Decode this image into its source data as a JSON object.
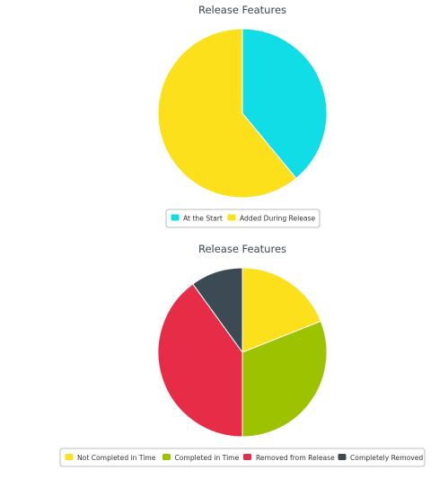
{
  "chart_data": [
    {
      "type": "pie",
      "title": "Release Features",
      "series": [
        {
          "name": "At the Start",
          "value": 39,
          "color": "#10dde6"
        },
        {
          "name": "Added During Release",
          "value": 61,
          "color": "#fde01c"
        }
      ],
      "legend_position": "bottom"
    },
    {
      "type": "pie",
      "title": "Release Features",
      "series": [
        {
          "name": "Not Completed in Time",
          "value": 19,
          "color": "#fde01c"
        },
        {
          "name": "Completed in Time",
          "value": 31,
          "color": "#9dc200"
        },
        {
          "name": "Removed from Release",
          "value": 40,
          "color": "#e72c48"
        },
        {
          "name": "Completely Removed",
          "value": 10,
          "color": "#3c4a54"
        }
      ],
      "legend_position": "bottom"
    }
  ]
}
